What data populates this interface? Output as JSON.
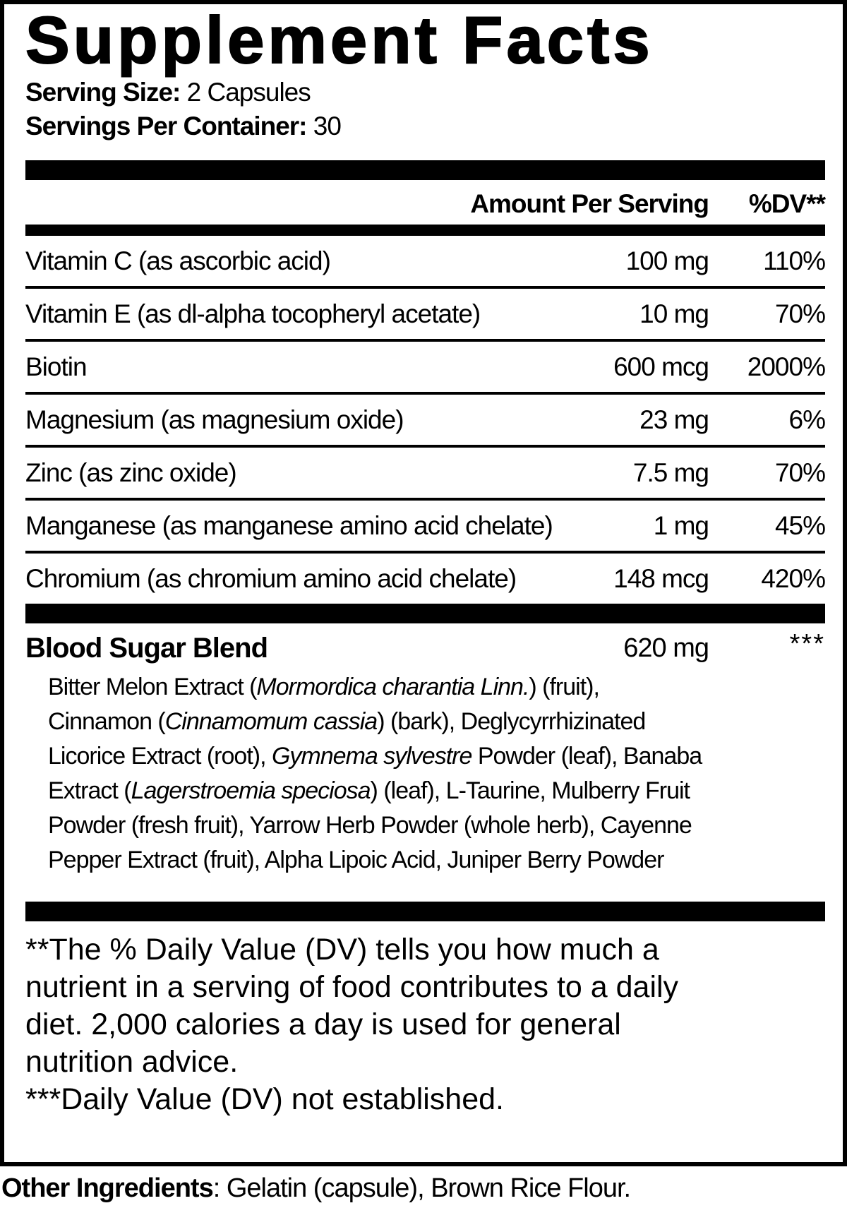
{
  "colors": {
    "text": "#000000",
    "background": "#ffffff"
  },
  "label": {
    "title": "Supplement Facts",
    "serving_size": {
      "label": "Serving Size:",
      "value": " 2 Capsules"
    },
    "servings_per_container": {
      "label": "Servings Per Container:",
      "value": " 30"
    },
    "table": {
      "header": {
        "amount": "Amount Per Serving",
        "dv": "%DV**"
      },
      "rows": [
        {
          "name": "Vitamin C (as ascorbic acid)",
          "amount": "100 mg",
          "dv": "110%"
        },
        {
          "name": "Vitamin E (as dl-alpha tocopheryl acetate)",
          "amount": "10 mg",
          "dv": "70%"
        },
        {
          "name": "Biotin",
          "amount": "600 mcg",
          "dv": "2000%"
        },
        {
          "name": "Magnesium (as magnesium oxide)",
          "amount": "23 mg",
          "dv": "6%"
        },
        {
          "name": "Zinc (as zinc oxide)",
          "amount": "7.5 mg",
          "dv": "70%"
        },
        {
          "name": "Manganese (as manganese amino acid chelate)",
          "amount": "1 mg",
          "dv": "45%"
        },
        {
          "name": "Chromium (as chromium amino acid chelate)",
          "amount": "148 mcg",
          "dv": "420%"
        }
      ]
    },
    "blend": {
      "name": "Blood Sugar Blend",
      "amount": "620 mg",
      "dv": "***",
      "lines": [
        [
          {
            "t": "Bitter Melon Extract ("
          },
          {
            "t": "Mormordica charantia Linn."
          },
          {
            "t": ") (fruit),"
          }
        ],
        [
          {
            "t": "Cinnamon ("
          },
          {
            "t": "Cinnamomum cassia"
          },
          {
            "t": ") (bark), Deglycyrrhizinated"
          }
        ],
        [
          {
            "t": "Licorice Extract (root), "
          },
          {
            "t": "Gymnema sylvestre"
          },
          {
            "t": " Powder (leaf), Banaba"
          }
        ],
        [
          {
            "t": "Extract ("
          },
          {
            "t": "Lagerstroemia speciosa"
          },
          {
            "t": ") (leaf), L-Taurine, Mulberry Fruit"
          }
        ],
        [
          {
            "t": "Powder (fresh fruit), Yarrow Herb Powder (whole herb), Cayenne"
          }
        ],
        [
          {
            "t": "Pepper Extract (fruit), Alpha Lipoic Acid, Juniper Berry Powder"
          }
        ]
      ]
    },
    "footnotes": {
      "lines": [
        "**The % Daily Value (DV) tells you how much a",
        "nutrient in a serving of food contributes to a daily",
        "diet. 2,000 calories a day is used for general",
        "nutrition advice.",
        "***Daily Value (DV) not established."
      ]
    },
    "other_ingredients": {
      "label": "Other Ingredients",
      "text": ": Gelatin (capsule), Brown Rice Flour."
    }
  }
}
